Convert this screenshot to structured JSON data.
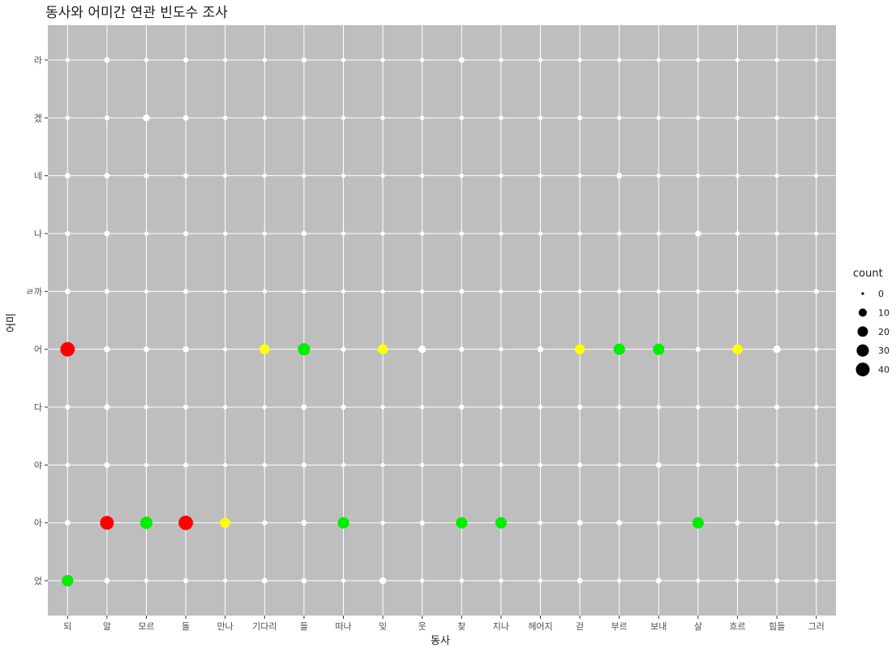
{
  "chart_data": {
    "type": "scatter",
    "title": "동사와 어미간 연관 빈도수 조사",
    "xlabel": "동사",
    "ylabel": "어미",
    "x_categories": [
      "되",
      "알",
      "모르",
      "돌",
      "만나",
      "기다리",
      "들",
      "떠나",
      "잊",
      "웃",
      "찾",
      "지나",
      "헤어지",
      "걷",
      "부르",
      "보내",
      "살",
      "흐르",
      "힘들",
      "그러"
    ],
    "y_categories": [
      "었",
      "아",
      "야",
      "다",
      "어",
      "ㄹ까",
      "나",
      "네",
      "겠",
      "라"
    ],
    "grid": true,
    "panel_color": "#bebebe",
    "grid_color": "#ffffff",
    "size_legend": {
      "title": "count",
      "values": [
        0,
        10,
        20,
        30,
        40
      ],
      "labels": [
        "0",
        "10",
        "20",
        "30",
        "40"
      ]
    },
    "color_scale": {
      "low": "#ffffff",
      "mid": "#ffff00",
      "high_mid": "#00ee00",
      "high": "#ff0000"
    },
    "points": [
      {
        "x": "되",
        "y": "라",
        "count": 1
      },
      {
        "x": "되",
        "y": "겠",
        "count": 1
      },
      {
        "x": "되",
        "y": "네",
        "count": 3
      },
      {
        "x": "되",
        "y": "나",
        "count": 2
      },
      {
        "x": "되",
        "y": "ㄹ까",
        "count": 3
      },
      {
        "x": "되",
        "y": "어",
        "count": 45
      },
      {
        "x": "되",
        "y": "다",
        "count": 2
      },
      {
        "x": "되",
        "y": "야",
        "count": 1
      },
      {
        "x": "되",
        "y": "아",
        "count": 3
      },
      {
        "x": "되",
        "y": "었",
        "count": 25
      },
      {
        "x": "알",
        "y": "라",
        "count": 3
      },
      {
        "x": "알",
        "y": "겠",
        "count": 2
      },
      {
        "x": "알",
        "y": "네",
        "count": 3
      },
      {
        "x": "알",
        "y": "나",
        "count": 3
      },
      {
        "x": "알",
        "y": "ㄹ까",
        "count": 2
      },
      {
        "x": "알",
        "y": "어",
        "count": 4
      },
      {
        "x": "알",
        "y": "다",
        "count": 3
      },
      {
        "x": "알",
        "y": "야",
        "count": 3
      },
      {
        "x": "알",
        "y": "아",
        "count": 40
      },
      {
        "x": "알",
        "y": "었",
        "count": 3
      },
      {
        "x": "모르",
        "y": "라",
        "count": 1
      },
      {
        "x": "모르",
        "y": "겠",
        "count": 6
      },
      {
        "x": "모르",
        "y": "네",
        "count": 2
      },
      {
        "x": "모르",
        "y": "나",
        "count": 1
      },
      {
        "x": "모르",
        "y": "ㄹ까",
        "count": 1
      },
      {
        "x": "모르",
        "y": "어",
        "count": 3
      },
      {
        "x": "모르",
        "y": "다",
        "count": 1
      },
      {
        "x": "모르",
        "y": "야",
        "count": 1
      },
      {
        "x": "모르",
        "y": "아",
        "count": 30
      },
      {
        "x": "모르",
        "y": "었",
        "count": 1
      },
      {
        "x": "돌",
        "y": "라",
        "count": 2
      },
      {
        "x": "돌",
        "y": "겠",
        "count": 3
      },
      {
        "x": "돌",
        "y": "네",
        "count": 2
      },
      {
        "x": "돌",
        "y": "나",
        "count": 2
      },
      {
        "x": "돌",
        "y": "ㄹ까",
        "count": 2
      },
      {
        "x": "돌",
        "y": "어",
        "count": 4
      },
      {
        "x": "돌",
        "y": "다",
        "count": 2
      },
      {
        "x": "돌",
        "y": "야",
        "count": 2
      },
      {
        "x": "돌",
        "y": "아",
        "count": 45
      },
      {
        "x": "돌",
        "y": "었",
        "count": 2
      },
      {
        "x": "만나",
        "y": "라",
        "count": 1
      },
      {
        "x": "만나",
        "y": "겠",
        "count": 1
      },
      {
        "x": "만나",
        "y": "네",
        "count": 1
      },
      {
        "x": "만나",
        "y": "나",
        "count": 1
      },
      {
        "x": "만나",
        "y": "ㄹ까",
        "count": 1
      },
      {
        "x": "만나",
        "y": "어",
        "count": 1
      },
      {
        "x": "만나",
        "y": "다",
        "count": 1
      },
      {
        "x": "만나",
        "y": "야",
        "count": 1
      },
      {
        "x": "만나",
        "y": "아",
        "count": 18
      },
      {
        "x": "만나",
        "y": "었",
        "count": 1
      },
      {
        "x": "기다리",
        "y": "라",
        "count": 1
      },
      {
        "x": "기다리",
        "y": "겠",
        "count": 1
      },
      {
        "x": "기다리",
        "y": "네",
        "count": 1
      },
      {
        "x": "기다리",
        "y": "나",
        "count": 1
      },
      {
        "x": "기다리",
        "y": "ㄹ까",
        "count": 1
      },
      {
        "x": "기다리",
        "y": "어",
        "count": 18
      },
      {
        "x": "기다리",
        "y": "다",
        "count": 1
      },
      {
        "x": "기다리",
        "y": "야",
        "count": 1
      },
      {
        "x": "기다리",
        "y": "아",
        "count": 2
      },
      {
        "x": "기다리",
        "y": "었",
        "count": 3
      },
      {
        "x": "들",
        "y": "라",
        "count": 2
      },
      {
        "x": "들",
        "y": "겠",
        "count": 1
      },
      {
        "x": "들",
        "y": "네",
        "count": 1
      },
      {
        "x": "들",
        "y": "나",
        "count": 2
      },
      {
        "x": "들",
        "y": "ㄹ까",
        "count": 1
      },
      {
        "x": "들",
        "y": "어",
        "count": 30
      },
      {
        "x": "들",
        "y": "다",
        "count": 3
      },
      {
        "x": "들",
        "y": "야",
        "count": 2
      },
      {
        "x": "들",
        "y": "아",
        "count": 3
      },
      {
        "x": "들",
        "y": "었",
        "count": 3
      },
      {
        "x": "떠나",
        "y": "라",
        "count": 1
      },
      {
        "x": "떠나",
        "y": "겠",
        "count": 1
      },
      {
        "x": "떠나",
        "y": "네",
        "count": 1
      },
      {
        "x": "떠나",
        "y": "나",
        "count": 1
      },
      {
        "x": "떠나",
        "y": "ㄹ까",
        "count": 1
      },
      {
        "x": "떠나",
        "y": "어",
        "count": 2
      },
      {
        "x": "떠나",
        "y": "다",
        "count": 2
      },
      {
        "x": "떠나",
        "y": "야",
        "count": 1
      },
      {
        "x": "떠나",
        "y": "아",
        "count": 25
      },
      {
        "x": "떠나",
        "y": "었",
        "count": 1
      },
      {
        "x": "잊",
        "y": "라",
        "count": 1
      },
      {
        "x": "잊",
        "y": "겠",
        "count": 1
      },
      {
        "x": "잊",
        "y": "네",
        "count": 1
      },
      {
        "x": "잊",
        "y": "나",
        "count": 1
      },
      {
        "x": "잊",
        "y": "ㄹ까",
        "count": 1
      },
      {
        "x": "잊",
        "y": "어",
        "count": 18
      },
      {
        "x": "잊",
        "y": "다",
        "count": 1
      },
      {
        "x": "잊",
        "y": "야",
        "count": 1
      },
      {
        "x": "잊",
        "y": "아",
        "count": 1
      },
      {
        "x": "잊",
        "y": "었",
        "count": 6
      },
      {
        "x": "웃",
        "y": "라",
        "count": 1
      },
      {
        "x": "웃",
        "y": "겠",
        "count": 1
      },
      {
        "x": "웃",
        "y": "네",
        "count": 1
      },
      {
        "x": "웃",
        "y": "나",
        "count": 1
      },
      {
        "x": "웃",
        "y": "ㄹ까",
        "count": 1
      },
      {
        "x": "웃",
        "y": "어",
        "count": 8
      },
      {
        "x": "웃",
        "y": "다",
        "count": 1
      },
      {
        "x": "웃",
        "y": "야",
        "count": 1
      },
      {
        "x": "웃",
        "y": "아",
        "count": 2
      },
      {
        "x": "웃",
        "y": "었",
        "count": 1
      },
      {
        "x": "찾",
        "y": "라",
        "count": 3
      },
      {
        "x": "찾",
        "y": "겠",
        "count": 1
      },
      {
        "x": "찾",
        "y": "네",
        "count": 1
      },
      {
        "x": "찾",
        "y": "나",
        "count": 1
      },
      {
        "x": "찾",
        "y": "ㄹ까",
        "count": 2
      },
      {
        "x": "찾",
        "y": "어",
        "count": 2
      },
      {
        "x": "찾",
        "y": "다",
        "count": 2
      },
      {
        "x": "찾",
        "y": "야",
        "count": 1
      },
      {
        "x": "찾",
        "y": "아",
        "count": 25
      },
      {
        "x": "찾",
        "y": "었",
        "count": 1
      },
      {
        "x": "지나",
        "y": "라",
        "count": 1
      },
      {
        "x": "지나",
        "y": "겠",
        "count": 1
      },
      {
        "x": "지나",
        "y": "네",
        "count": 1
      },
      {
        "x": "지나",
        "y": "나",
        "count": 1
      },
      {
        "x": "지나",
        "y": "ㄹ까",
        "count": 1
      },
      {
        "x": "지나",
        "y": "어",
        "count": 1
      },
      {
        "x": "지나",
        "y": "다",
        "count": 1
      },
      {
        "x": "지나",
        "y": "야",
        "count": 1
      },
      {
        "x": "지나",
        "y": "아",
        "count": 25
      },
      {
        "x": "지나",
        "y": "었",
        "count": 1
      },
      {
        "x": "헤어지",
        "y": "라",
        "count": 1
      },
      {
        "x": "헤어지",
        "y": "겠",
        "count": 1
      },
      {
        "x": "헤어지",
        "y": "네",
        "count": 1
      },
      {
        "x": "헤어지",
        "y": "나",
        "count": 1
      },
      {
        "x": "헤어지",
        "y": "ㄹ까",
        "count": 1
      },
      {
        "x": "헤어지",
        "y": "어",
        "count": 4
      },
      {
        "x": "헤어지",
        "y": "다",
        "count": 1
      },
      {
        "x": "헤어지",
        "y": "야",
        "count": 1
      },
      {
        "x": "헤어지",
        "y": "아",
        "count": 1
      },
      {
        "x": "헤어지",
        "y": "었",
        "count": 1
      },
      {
        "x": "걷",
        "y": "라",
        "count": 1
      },
      {
        "x": "걷",
        "y": "겠",
        "count": 2
      },
      {
        "x": "걷",
        "y": "네",
        "count": 1
      },
      {
        "x": "걷",
        "y": "나",
        "count": 1
      },
      {
        "x": "걷",
        "y": "ㄹ까",
        "count": 1
      },
      {
        "x": "걷",
        "y": "어",
        "count": 18
      },
      {
        "x": "걷",
        "y": "다",
        "count": 2
      },
      {
        "x": "걷",
        "y": "야",
        "count": 2
      },
      {
        "x": "걷",
        "y": "아",
        "count": 3
      },
      {
        "x": "걷",
        "y": "었",
        "count": 3
      },
      {
        "x": "부르",
        "y": "라",
        "count": 1
      },
      {
        "x": "부르",
        "y": "겠",
        "count": 1
      },
      {
        "x": "부르",
        "y": "네",
        "count": 3
      },
      {
        "x": "부르",
        "y": "나",
        "count": 1
      },
      {
        "x": "부르",
        "y": "ㄹ까",
        "count": 1
      },
      {
        "x": "부르",
        "y": "어",
        "count": 25
      },
      {
        "x": "부르",
        "y": "다",
        "count": 1
      },
      {
        "x": "부르",
        "y": "야",
        "count": 1
      },
      {
        "x": "부르",
        "y": "아",
        "count": 3
      },
      {
        "x": "부르",
        "y": "었",
        "count": 1
      },
      {
        "x": "보내",
        "y": "라",
        "count": 1
      },
      {
        "x": "보내",
        "y": "겠",
        "count": 1
      },
      {
        "x": "보내",
        "y": "네",
        "count": 1
      },
      {
        "x": "보내",
        "y": "나",
        "count": 1
      },
      {
        "x": "보내",
        "y": "ㄹ까",
        "count": 1
      },
      {
        "x": "보내",
        "y": "어",
        "count": 25
      },
      {
        "x": "보내",
        "y": "다",
        "count": 1
      },
      {
        "x": "보내",
        "y": "야",
        "count": 3
      },
      {
        "x": "보내",
        "y": "아",
        "count": 1
      },
      {
        "x": "보내",
        "y": "었",
        "count": 3
      },
      {
        "x": "살",
        "y": "라",
        "count": 1
      },
      {
        "x": "살",
        "y": "겠",
        "count": 1
      },
      {
        "x": "살",
        "y": "네",
        "count": 1
      },
      {
        "x": "살",
        "y": "나",
        "count": 4
      },
      {
        "x": "살",
        "y": "ㄹ까",
        "count": 1
      },
      {
        "x": "살",
        "y": "어",
        "count": 2
      },
      {
        "x": "살",
        "y": "다",
        "count": 1
      },
      {
        "x": "살",
        "y": "야",
        "count": 1
      },
      {
        "x": "살",
        "y": "아",
        "count": 25
      },
      {
        "x": "살",
        "y": "었",
        "count": 1
      },
      {
        "x": "흐르",
        "y": "라",
        "count": 1
      },
      {
        "x": "흐르",
        "y": "겠",
        "count": 1
      },
      {
        "x": "흐르",
        "y": "네",
        "count": 1
      },
      {
        "x": "흐르",
        "y": "나",
        "count": 1
      },
      {
        "x": "흐르",
        "y": "ㄹ까",
        "count": 1
      },
      {
        "x": "흐르",
        "y": "어",
        "count": 18
      },
      {
        "x": "흐르",
        "y": "다",
        "count": 1
      },
      {
        "x": "흐르",
        "y": "야",
        "count": 1
      },
      {
        "x": "흐르",
        "y": "아",
        "count": 2
      },
      {
        "x": "흐르",
        "y": "었",
        "count": 1
      },
      {
        "x": "힘들",
        "y": "라",
        "count": 1
      },
      {
        "x": "힘들",
        "y": "겠",
        "count": 1
      },
      {
        "x": "힘들",
        "y": "네",
        "count": 1
      },
      {
        "x": "힘들",
        "y": "나",
        "count": 1
      },
      {
        "x": "힘들",
        "y": "ㄹ까",
        "count": 1
      },
      {
        "x": "힘들",
        "y": "어",
        "count": 8
      },
      {
        "x": "힘들",
        "y": "다",
        "count": 2
      },
      {
        "x": "힘들",
        "y": "야",
        "count": 1
      },
      {
        "x": "힘들",
        "y": "아",
        "count": 2
      },
      {
        "x": "힘들",
        "y": "었",
        "count": 2
      },
      {
        "x": "그러",
        "y": "라",
        "count": 1
      },
      {
        "x": "그러",
        "y": "겠",
        "count": 1
      },
      {
        "x": "그러",
        "y": "네",
        "count": 1
      },
      {
        "x": "그러",
        "y": "나",
        "count": 1
      },
      {
        "x": "그러",
        "y": "ㄹ까",
        "count": 2
      },
      {
        "x": "그러",
        "y": "어",
        "count": 1
      },
      {
        "x": "그러",
        "y": "다",
        "count": 1
      },
      {
        "x": "그러",
        "y": "야",
        "count": 1
      },
      {
        "x": "그러",
        "y": "아",
        "count": 1
      },
      {
        "x": "그러",
        "y": "었",
        "count": 1
      }
    ]
  }
}
